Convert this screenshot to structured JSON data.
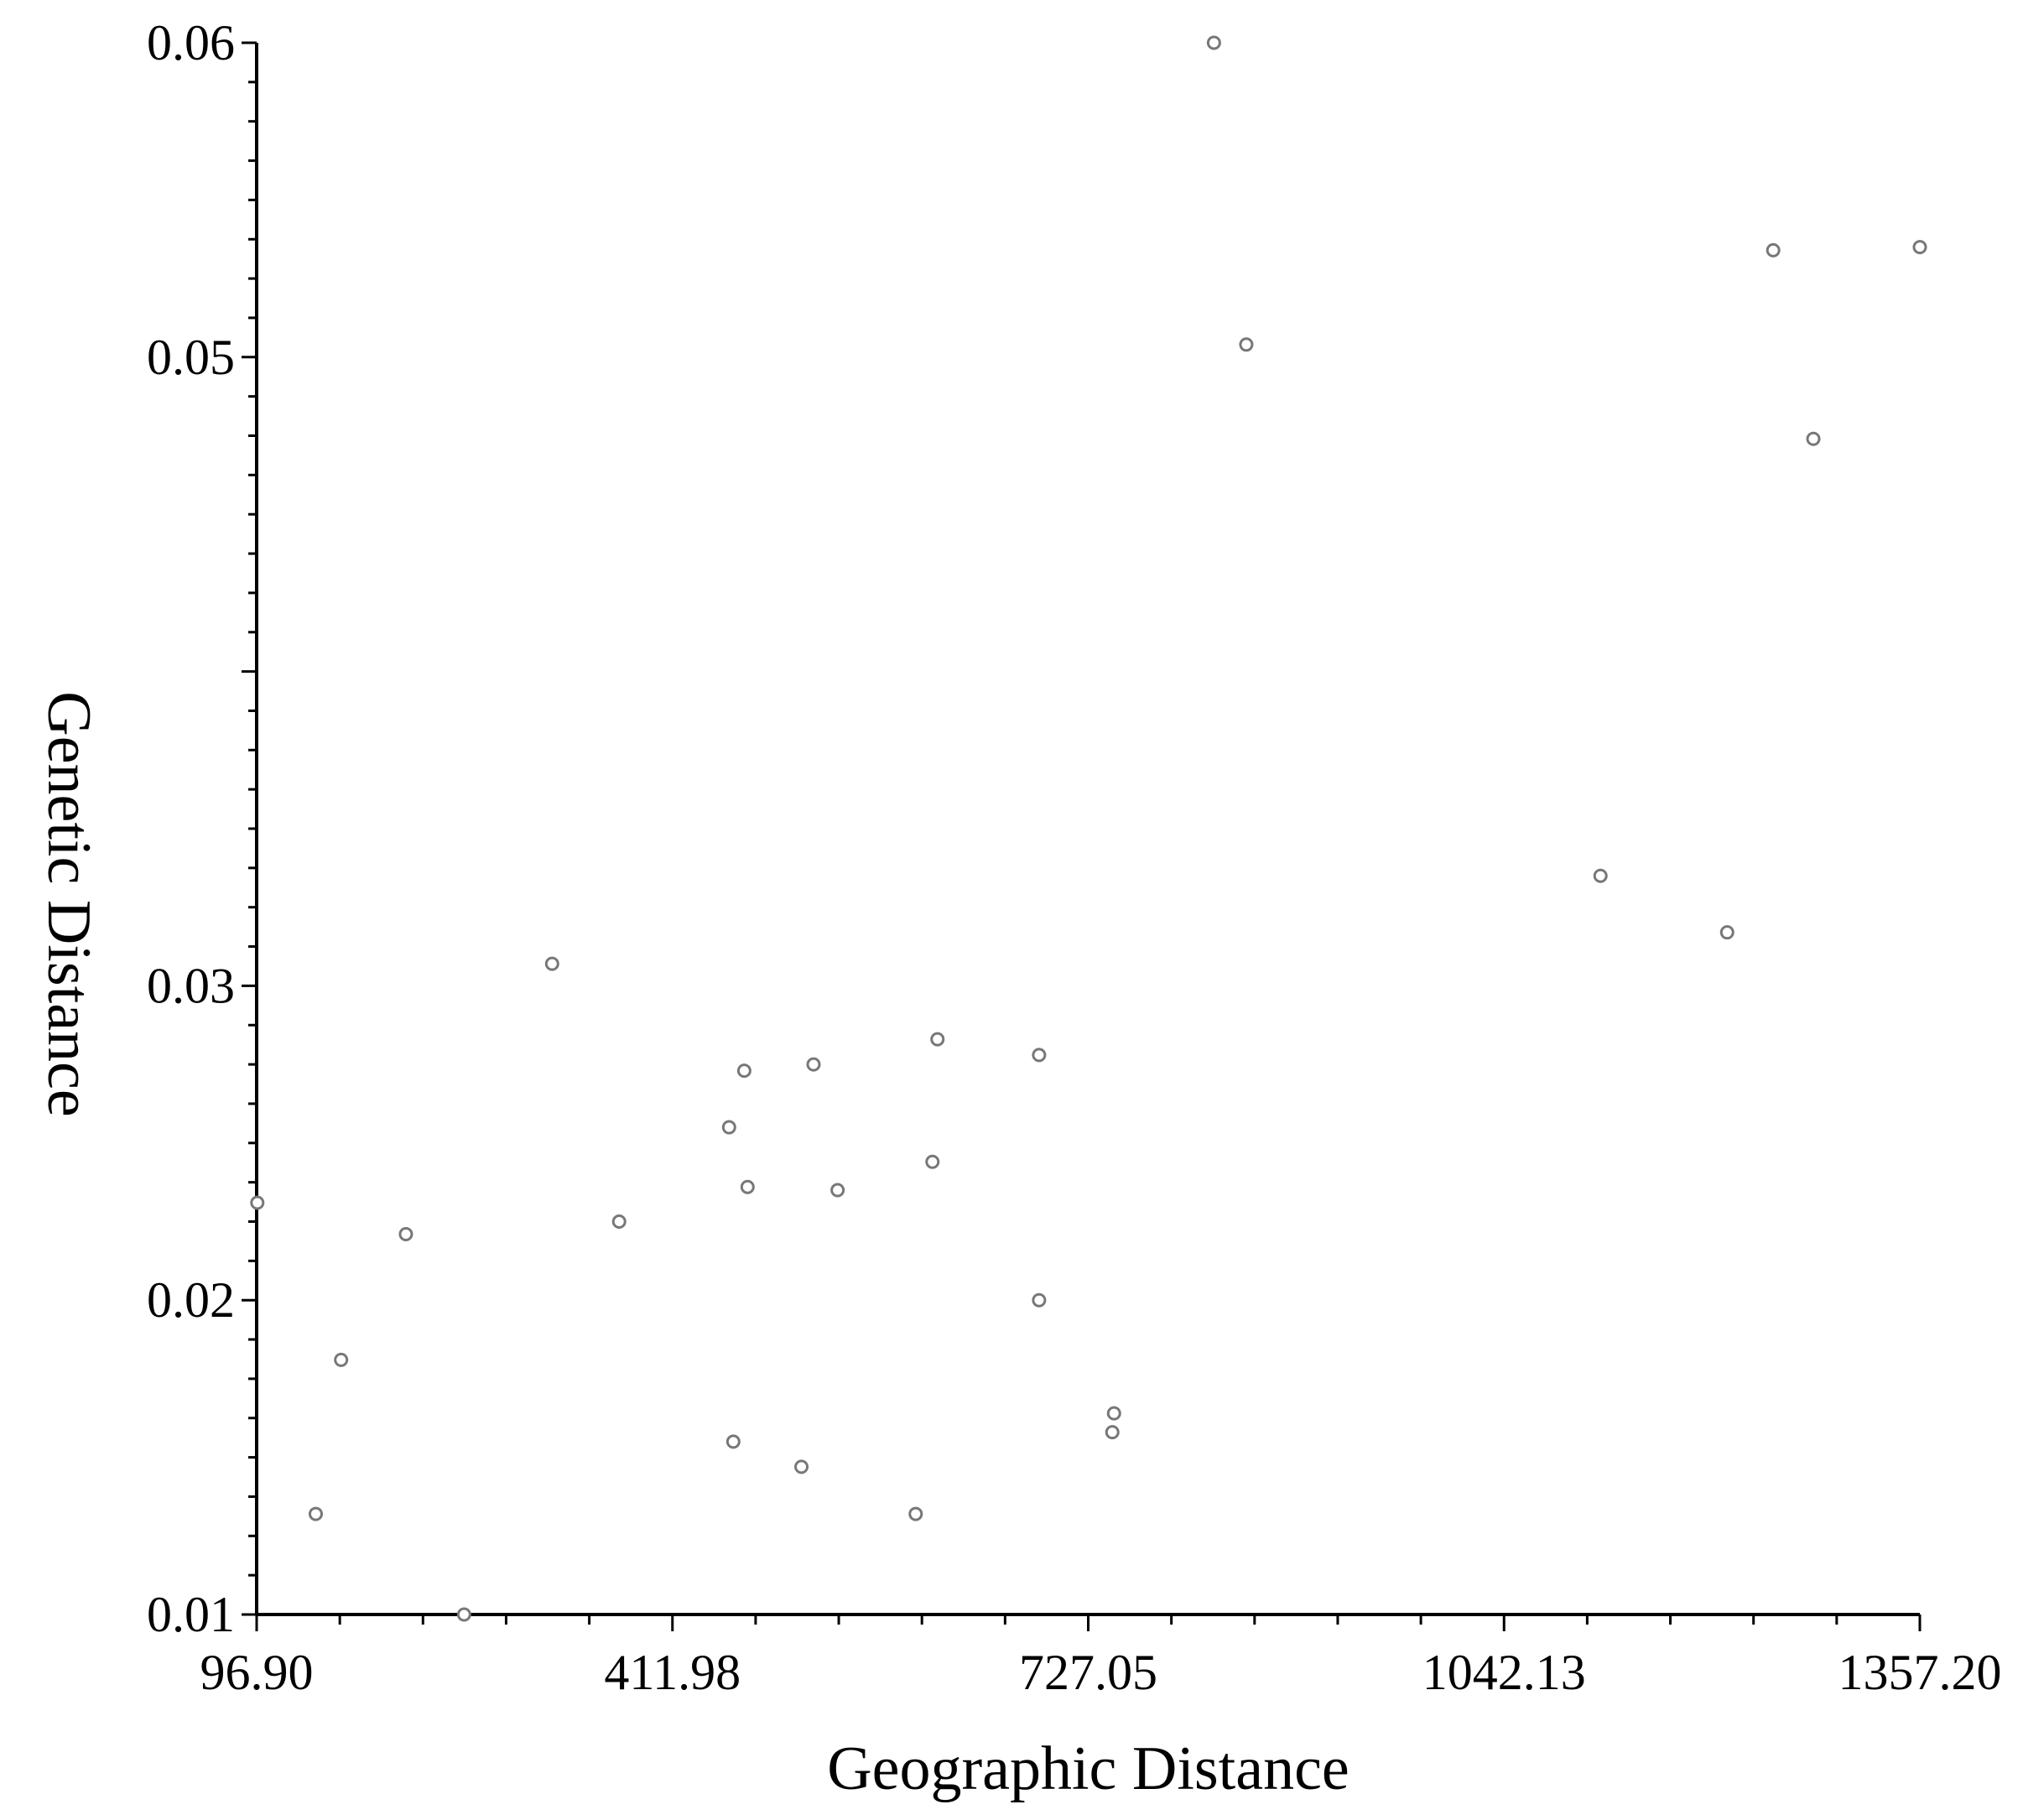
{
  "chart_data": {
    "type": "scatter",
    "title": "",
    "xlabel": "Geographic Distance",
    "ylabel": "Genetic Distance",
    "xlim": [
      96.9,
      1357.2
    ],
    "ylim": [
      0.01,
      0.06
    ],
    "x_ticks": [
      "96.90",
      "411.98",
      "727.05",
      "1042.13",
      "1357.20"
    ],
    "y_ticks": [
      "0.01",
      "0.02",
      "0.03",
      "0.05",
      "0.06"
    ],
    "y_tick_values": [
      0.01,
      0.02,
      0.03,
      0.05,
      0.06
    ],
    "grid": false,
    "marker": "open-circle",
    "marker_color": "#777777",
    "points": [
      {
        "x": 97.4,
        "y": 0.0231
      },
      {
        "x": 141.7,
        "y": 0.0132
      },
      {
        "x": 160.9,
        "y": 0.0181
      },
      {
        "x": 210.0,
        "y": 0.0221
      },
      {
        "x": 254.1,
        "y": 0.01
      },
      {
        "x": 320.8,
        "y": 0.0307
      },
      {
        "x": 371.6,
        "y": 0.0225
      },
      {
        "x": 454.9,
        "y": 0.0255
      },
      {
        "x": 458.1,
        "y": 0.0155
      },
      {
        "x": 466.4,
        "y": 0.0273
      },
      {
        "x": 468.9,
        "y": 0.0236
      },
      {
        "x": 509.7,
        "y": 0.0147
      },
      {
        "x": 518.9,
        "y": 0.0275
      },
      {
        "x": 537.1,
        "y": 0.0235
      },
      {
        "x": 596.3,
        "y": 0.0132
      },
      {
        "x": 609.0,
        "y": 0.0244
      },
      {
        "x": 612.8,
        "y": 0.0283
      },
      {
        "x": 689.8,
        "y": 0.0278
      },
      {
        "x": 689.8,
        "y": 0.02
      },
      {
        "x": 746.6,
        "y": 0.0164
      },
      {
        "x": 745.3,
        "y": 0.0158
      },
      {
        "x": 822.3,
        "y": 0.06
      },
      {
        "x": 846.8,
        "y": 0.0504
      },
      {
        "x": 1115.2,
        "y": 0.0335
      },
      {
        "x": 1211.2,
        "y": 0.0317
      },
      {
        "x": 1246.1,
        "y": 0.0534
      },
      {
        "x": 1276.5,
        "y": 0.0474
      },
      {
        "x": 1357.2,
        "y": 0.0535
      }
    ]
  }
}
